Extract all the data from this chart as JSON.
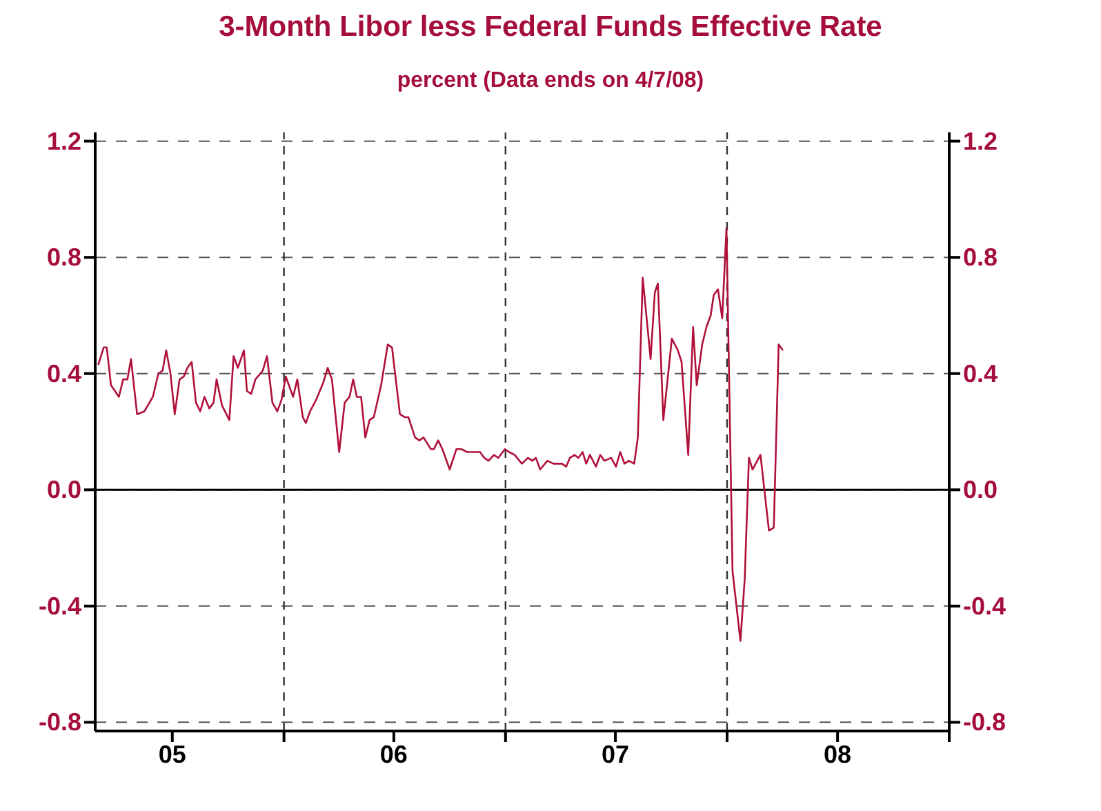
{
  "chart_data": {
    "type": "line",
    "title": "3-Month Libor less Federal Funds Effective Rate",
    "subtitle": "percent  (Data ends on 4/7/08)",
    "x": [
      "2005-03-01",
      "2005-03-10",
      "2005-03-15",
      "2005-03-22",
      "2005-04-04",
      "2005-04-11",
      "2005-04-18",
      "2005-04-24",
      "2005-05-04",
      "2005-05-16",
      "2005-05-30",
      "2005-06-08",
      "2005-06-15",
      "2005-06-21",
      "2005-06-28",
      "2005-07-05",
      "2005-07-13",
      "2005-07-20",
      "2005-07-26",
      "2005-08-02",
      "2005-08-09",
      "2005-08-16",
      "2005-08-23",
      "2005-08-31",
      "2005-09-07",
      "2005-09-12",
      "2005-09-21",
      "2005-10-03",
      "2005-10-10",
      "2005-10-17",
      "2005-10-27",
      "2005-11-01",
      "2005-11-08",
      "2005-11-15",
      "2005-11-27",
      "2005-12-04",
      "2005-12-13",
      "2005-12-21",
      "2005-12-28",
      "2006-01-04",
      "2006-01-16",
      "2006-01-23",
      "2006-02-01",
      "2006-02-06",
      "2006-02-13",
      "2006-02-23",
      "2006-03-07",
      "2006-03-14",
      "2006-03-21",
      "2006-04-02",
      "2006-04-11",
      "2006-04-19",
      "2006-04-25",
      "2006-05-01",
      "2006-05-08",
      "2006-05-15",
      "2006-05-22",
      "2006-05-29",
      "2006-06-10",
      "2006-06-21",
      "2006-06-28",
      "2006-07-11",
      "2006-07-19",
      "2006-07-25",
      "2006-08-05",
      "2006-08-12",
      "2006-08-19",
      "2006-08-31",
      "2006-09-05",
      "2006-09-12",
      "2006-09-19",
      "2006-10-01",
      "2006-10-12",
      "2006-10-20",
      "2006-10-30",
      "2006-11-06",
      "2006-11-20",
      "2006-11-27",
      "2006-12-04",
      "2006-12-13",
      "2006-12-20",
      "2006-12-31",
      "2007-01-07",
      "2007-01-16",
      "2007-01-28",
      "2007-02-07",
      "2007-02-14",
      "2007-02-20",
      "2007-02-27",
      "2007-03-11",
      "2007-03-21",
      "2007-04-04",
      "2007-04-11",
      "2007-04-17",
      "2007-04-25",
      "2007-05-01",
      "2007-05-08",
      "2007-05-14",
      "2007-05-20",
      "2007-05-30",
      "2007-06-06",
      "2007-06-13",
      "2007-06-24",
      "2007-07-02",
      "2007-07-09",
      "2007-07-16",
      "2007-07-23",
      "2007-08-01",
      "2007-08-07",
      "2007-08-15",
      "2007-08-28",
      "2007-09-04",
      "2007-09-09",
      "2007-09-18",
      "2007-09-27",
      "2007-10-02",
      "2007-10-12",
      "2007-10-18",
      "2007-10-29",
      "2007-11-06",
      "2007-11-12",
      "2007-11-21",
      "2007-11-28",
      "2007-12-05",
      "2007-12-10",
      "2007-12-17",
      "2007-12-24",
      "2007-12-28",
      "2007-12-31",
      "2008-01-10",
      "2008-01-23",
      "2008-01-30",
      "2008-02-06",
      "2008-02-12",
      "2008-02-25",
      "2008-03-10",
      "2008-03-18",
      "2008-03-26",
      "2008-04-02"
    ],
    "series": [
      {
        "color": "#b0103a",
        "values": [
          0.43,
          0.49,
          0.49,
          0.36,
          0.32,
          0.38,
          0.38,
          0.45,
          0.26,
          0.27,
          0.32,
          0.4,
          0.41,
          0.48,
          0.4,
          0.26,
          0.38,
          0.39,
          0.42,
          0.44,
          0.3,
          0.27,
          0.32,
          0.28,
          0.3,
          0.38,
          0.29,
          0.24,
          0.46,
          0.42,
          0.48,
          0.34,
          0.33,
          0.38,
          0.41,
          0.46,
          0.3,
          0.27,
          0.31,
          0.39,
          0.32,
          0.38,
          0.25,
          0.23,
          0.27,
          0.31,
          0.37,
          0.42,
          0.38,
          0.13,
          0.3,
          0.32,
          0.38,
          0.32,
          0.32,
          0.18,
          0.24,
          0.25,
          0.36,
          0.5,
          0.49,
          0.26,
          0.25,
          0.25,
          0.18,
          0.17,
          0.18,
          0.14,
          0.14,
          0.17,
          0.14,
          0.07,
          0.14,
          0.14,
          0.13,
          0.13,
          0.13,
          0.11,
          0.1,
          0.12,
          0.11,
          0.14,
          0.13,
          0.12,
          0.09,
          0.11,
          0.1,
          0.11,
          0.07,
          0.1,
          0.09,
          0.09,
          0.08,
          0.11,
          0.12,
          0.11,
          0.13,
          0.09,
          0.12,
          0.08,
          0.12,
          0.1,
          0.11,
          0.08,
          0.13,
          0.09,
          0.1,
          0.09,
          0.18,
          0.73,
          0.45,
          0.68,
          0.71,
          0.24,
          0.42,
          0.52,
          0.48,
          0.44,
          0.12,
          0.56,
          0.36,
          0.5,
          0.56,
          0.6,
          0.67,
          0.69,
          0.59,
          0.77,
          0.9,
          -0.28,
          -0.52,
          -0.31,
          0.11,
          0.07,
          0.12,
          -0.14,
          -0.13,
          0.5,
          0.48
        ]
      }
    ],
    "xlim": [
      "2005-02-24",
      "2009-01-01"
    ],
    "xticks": [
      {
        "value": "2005-07-01",
        "label": "05"
      },
      {
        "value": "2006-01-01",
        "label": null
      },
      {
        "value": "2006-07-01",
        "label": "06"
      },
      {
        "value": "2007-01-01",
        "label": null
      },
      {
        "value": "2007-07-01",
        "label": "07"
      },
      {
        "value": "2008-01-01",
        "label": null
      },
      {
        "value": "2008-07-01",
        "label": "08"
      },
      {
        "value": "2009-01-01",
        "label": null
      }
    ],
    "ylim": [
      -0.83,
      1.23
    ],
    "yticks": [
      -0.8,
      -0.4,
      {
        "value": 0,
        "label": "0.0"
      },
      0.4,
      0.8,
      1.2
    ],
    "y2lim": [
      -0.83,
      1.23
    ],
    "y2ticks": [
      -0.8,
      -0.4,
      {
        "value": 0,
        "label": "0.0"
      },
      0.4,
      0.8,
      1.2
    ],
    "grid": "y",
    "ref_lines": [
      {
        "axis": "y",
        "value": 0,
        "color": "#000000",
        "line_style": "solid"
      },
      {
        "axis": "x",
        "value": "2006-01-01",
        "color": "#333333",
        "line_style": "dashed"
      },
      {
        "axis": "x",
        "value": "2007-01-01",
        "color": "#333333",
        "line_style": "dashed"
      },
      {
        "axis": "x",
        "value": "2008-01-01",
        "color": "#333333",
        "line_style": "dashed"
      }
    ],
    "marker": "none",
    "line_style": "solid"
  }
}
